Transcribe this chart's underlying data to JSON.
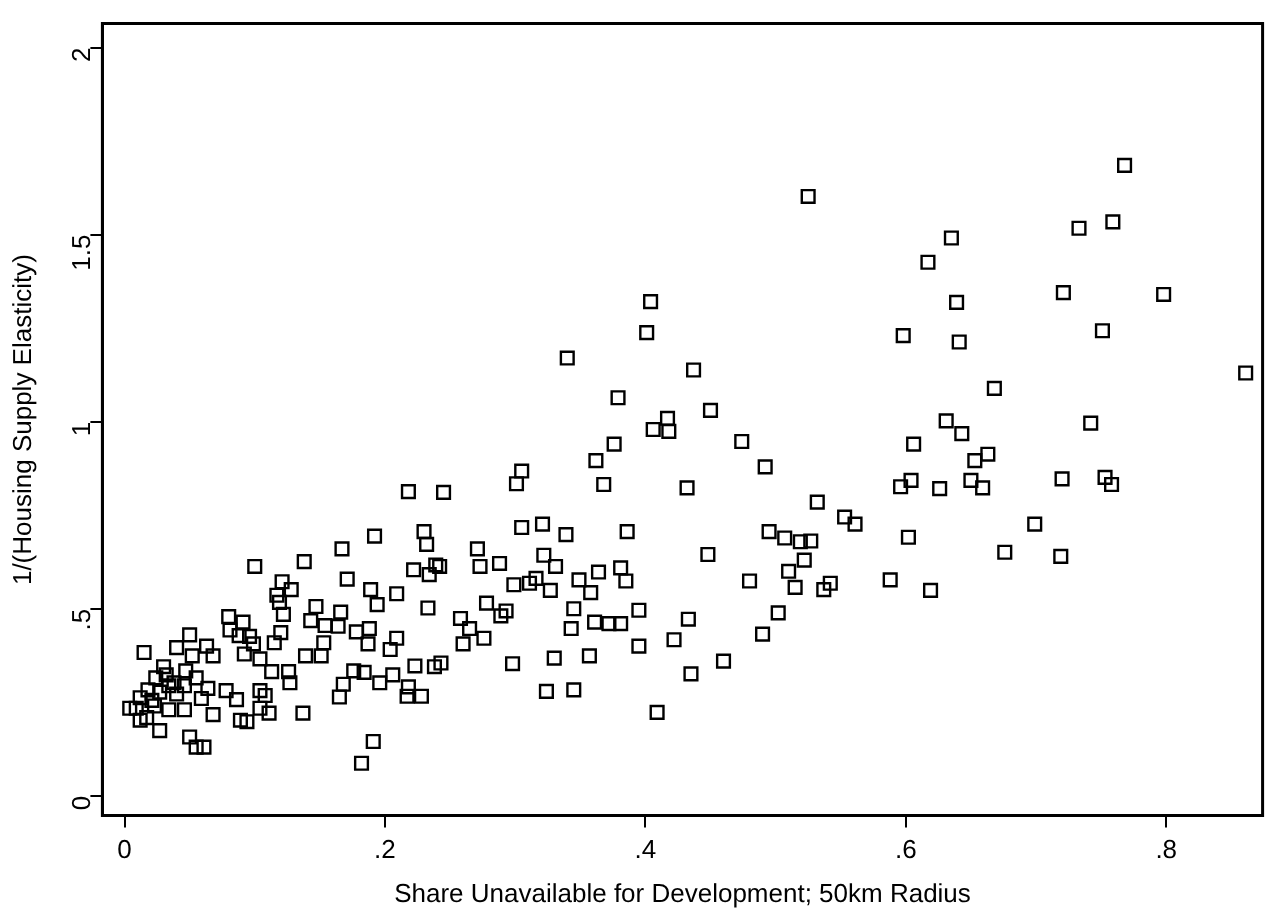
{
  "chart_data": {
    "type": "scatter",
    "xlabel": "Share Unavailable for Development; 50km Radius",
    "ylabel": "1/(Housing Supply Elasticity)",
    "marker": "square",
    "grid": false,
    "legend": false,
    "xlim": [
      -0.017,
      0.874
    ],
    "ylim": [
      -0.053,
      2.064
    ],
    "xticks": [
      0,
      {
        "value": 0.2,
        "label": ".2"
      },
      {
        "value": 0.4,
        "label": ".4"
      },
      {
        "value": 0.6,
        "label": ".6"
      },
      {
        "value": 0.8,
        "label": ".8"
      }
    ],
    "yticks": [
      0,
      {
        "value": 0.5,
        "label": ".5"
      },
      1,
      1.5,
      2
    ],
    "series": [
      {
        "color": "#000000",
        "x": [
          0.861,
          0.768,
          0.798,
          0.733,
          0.759,
          0.721,
          0.751,
          0.742,
          0.753,
          0.758,
          0.72,
          0.719,
          0.699,
          0.676,
          0.668,
          0.663,
          0.653,
          0.65,
          0.659,
          0.643,
          0.631,
          0.641,
          0.639,
          0.635,
          0.617,
          0.598,
          0.606,
          0.604,
          0.596,
          0.626,
          0.602,
          0.619,
          0.588,
          0.525,
          0.532,
          0.553,
          0.561,
          0.542,
          0.537,
          0.527,
          0.519,
          0.522,
          0.51,
          0.515,
          0.507,
          0.495,
          0.502,
          0.49,
          0.492,
          0.474,
          0.48,
          0.46,
          0.448,
          0.45,
          0.437,
          0.432,
          0.435,
          0.433,
          0.422,
          0.409,
          0.404,
          0.401,
          0.406,
          0.417,
          0.418,
          0.395,
          0.395,
          0.386,
          0.385,
          0.381,
          0.379,
          0.376,
          0.368,
          0.362,
          0.364,
          0.381,
          0.372,
          0.361,
          0.358,
          0.357,
          0.345,
          0.343,
          0.345,
          0.339,
          0.34,
          0.331,
          0.327,
          0.322,
          0.321,
          0.316,
          0.311,
          0.33,
          0.324,
          0.349,
          0.305,
          0.305,
          0.301,
          0.299,
          0.298,
          0.293,
          0.289,
          0.288,
          0.278,
          0.276,
          0.273,
          0.271,
          0.265,
          0.258,
          0.26,
          0.245,
          0.242,
          0.239,
          0.234,
          0.232,
          0.23,
          0.233,
          0.243,
          0.238,
          0.223,
          0.222,
          0.218,
          0.228,
          0.217,
          0.218,
          0.209,
          0.209,
          0.204,
          0.206,
          0.196,
          0.194,
          0.192,
          0.189,
          0.188,
          0.187,
          0.191,
          0.182,
          0.184,
          0.178,
          0.176,
          0.168,
          0.171,
          0.167,
          0.166,
          0.164,
          0.165,
          0.154,
          0.153,
          0.151,
          0.147,
          0.143,
          0.138,
          0.139,
          0.137,
          0.128,
          0.127,
          0.126,
          0.121,
          0.117,
          0.12,
          0.115,
          0.113,
          0.108,
          0.111,
          0.104,
          0.104,
          0.1,
          0.099,
          0.096,
          0.092,
          0.091,
          0.088,
          0.094,
          0.089,
          0.086,
          0.08,
          0.078,
          0.068,
          0.068,
          0.063,
          0.064,
          0.061,
          0.055,
          0.05,
          0.05,
          0.052,
          0.047,
          0.046,
          0.04,
          0.038,
          0.034,
          0.03,
          0.027,
          0.023,
          0.024,
          0.018,
          0.015,
          0.012,
          0.009,
          0.004,
          0.012,
          0.017,
          0.021,
          0.027,
          0.032,
          0.04,
          0.034,
          0.055,
          0.059,
          0.046,
          0.081,
          0.104,
          0.122,
          0.119
        ],
        "values": [
          1.13,
          1.685,
          1.34,
          1.517,
          1.534,
          1.345,
          1.243,
          0.996,
          0.851,
          0.832,
          0.847,
          0.64,
          0.726,
          0.651,
          1.089,
          0.913,
          0.896,
          0.843,
          0.823,
          0.968,
          1.002,
          1.213,
          1.319,
          1.491,
          1.426,
          1.23,
          0.94,
          0.843,
          0.826,
          0.821,
          0.691,
          0.549,
          0.577,
          1.602,
          0.785,
          0.745,
          0.726,
          0.568,
          0.551,
          0.681,
          0.679,
          0.63,
          0.6,
          0.557,
          0.689,
          0.706,
          0.489,
          0.432,
          0.879,
          0.947,
          0.574,
          0.36,
          0.645,
          1.03,
          1.138,
          0.823,
          0.326,
          0.472,
          0.417,
          0.223,
          1.321,
          1.238,
          0.979,
          1.009,
          0.974,
          0.4,
          0.496,
          0.706,
          0.574,
          0.609,
          1.064,
          0.94,
          0.832,
          0.896,
          0.598,
          0.46,
          0.46,
          0.464,
          0.543,
          0.374,
          0.5,
          0.447,
          0.283,
          0.698,
          1.17,
          0.613,
          0.549,
          0.643,
          0.726,
          0.581,
          0.568,
          0.368,
          0.279,
          0.577,
          0.717,
          0.868,
          0.834,
          0.564,
          0.353,
          0.494,
          0.481,
          0.621,
          0.515,
          0.421,
          0.613,
          0.66,
          0.447,
          0.474,
          0.406,
          0.811,
          0.613,
          0.617,
          0.591,
          0.672,
          0.706,
          0.502,
          0.355,
          0.345,
          0.347,
          0.604,
          0.813,
          0.266,
          0.266,
          0.291,
          0.54,
          0.421,
          0.391,
          0.323,
          0.302,
          0.511,
          0.694,
          0.551,
          0.447,
          0.406,
          0.145,
          0.087,
          0.33,
          0.438,
          0.334,
          0.298,
          0.579,
          0.66,
          0.491,
          0.453,
          0.264,
          0.455,
          0.409,
          0.374,
          0.506,
          0.468,
          0.626,
          0.374,
          0.221,
          0.551,
          0.302,
          0.332,
          0.572,
          0.536,
          0.436,
          0.409,
          0.332,
          0.268,
          0.221,
          0.281,
          0.234,
          0.613,
          0.406,
          0.426,
          0.379,
          0.464,
          0.428,
          0.198,
          0.202,
          0.257,
          0.479,
          0.281,
          0.374,
          0.217,
          0.4,
          0.287,
          0.13,
          0.13,
          0.157,
          0.43,
          0.374,
          0.334,
          0.23,
          0.396,
          0.302,
          0.23,
          0.345,
          0.174,
          0.24,
          0.315,
          0.283,
          0.383,
          0.202,
          0.234,
          0.234,
          0.262,
          0.209,
          0.255,
          0.277,
          0.323,
          0.272,
          0.294,
          0.315,
          0.26,
          0.294,
          0.443,
          0.366,
          0.485,
          0.517
        ]
      }
    ]
  }
}
